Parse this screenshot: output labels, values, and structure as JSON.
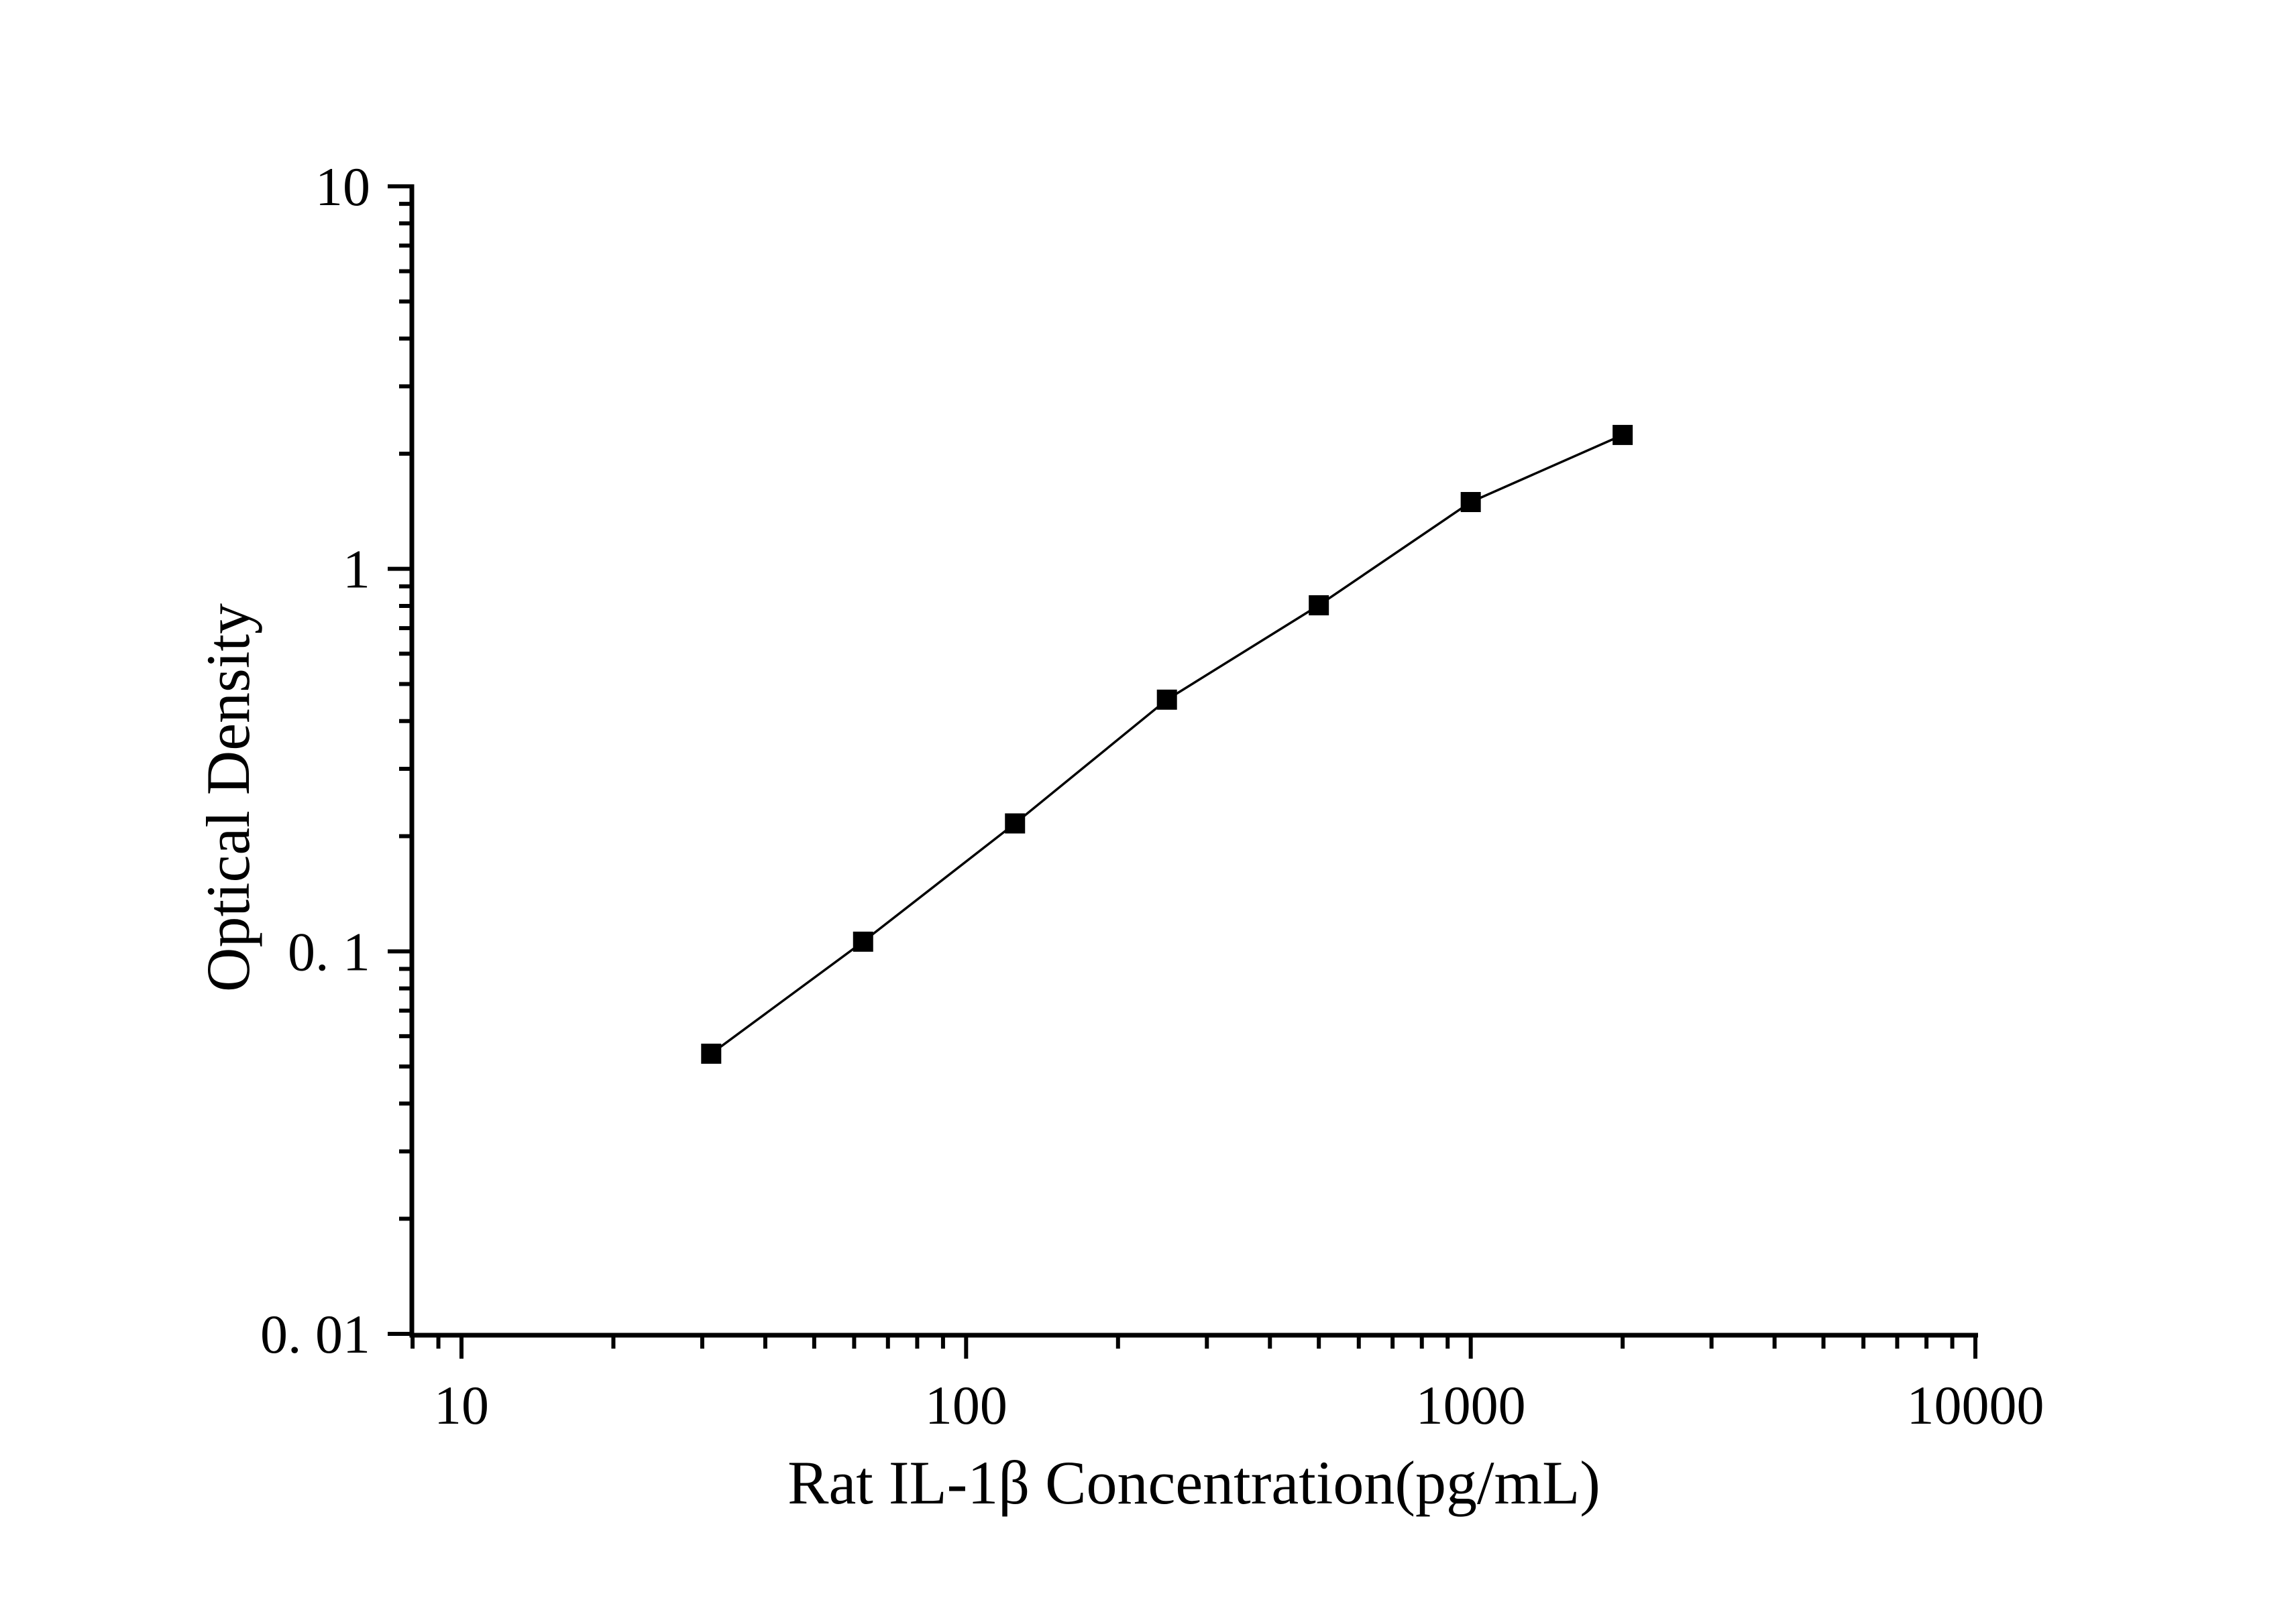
{
  "chart_data": {
    "type": "line",
    "title": "",
    "xlabel": "Rat IL-1β Concentration(pg/mL)",
    "ylabel": "Optical Density",
    "x_scale": "log",
    "y_scale": "log",
    "xlim": [
      8,
      10000
    ],
    "ylim": [
      0.01,
      10
    ],
    "grid": false,
    "legend": "none",
    "marker": "filled-square",
    "colors": {
      "line": "#000000",
      "marker": "#000000",
      "axis": "#000000",
      "text": "#000000",
      "background": "#ffffff"
    },
    "series": [
      {
        "x": [
          31.25,
          62.5,
          125,
          250,
          500,
          1000,
          2000
        ],
        "y": [
          0.054,
          0.106,
          0.216,
          0.455,
          0.803,
          1.495,
          2.239
        ]
      }
    ],
    "x_ticks": {
      "values": [
        10,
        100,
        1000,
        10000
      ],
      "labels": [
        "10",
        "100",
        "1000",
        "10000"
      ],
      "minor": [
        8,
        9,
        20,
        30,
        40,
        50,
        60,
        70,
        80,
        90,
        200,
        300,
        400,
        500,
        600,
        700,
        800,
        900,
        2000,
        3000,
        4000,
        5000,
        6000,
        7000,
        8000,
        9000
      ]
    },
    "y_ticks": {
      "values": [
        10,
        1,
        0.1,
        0.01
      ],
      "labels": [
        "10",
        "1",
        "0. 1",
        "0. 01"
      ],
      "minor": [
        9,
        8,
        7,
        6,
        5,
        4,
        3,
        2,
        0.9,
        0.8,
        0.7,
        0.6,
        0.5,
        0.4,
        0.3,
        0.2,
        0.09,
        0.08,
        0.07,
        0.06,
        0.05,
        0.04,
        0.03,
        0.02
      ]
    }
  }
}
